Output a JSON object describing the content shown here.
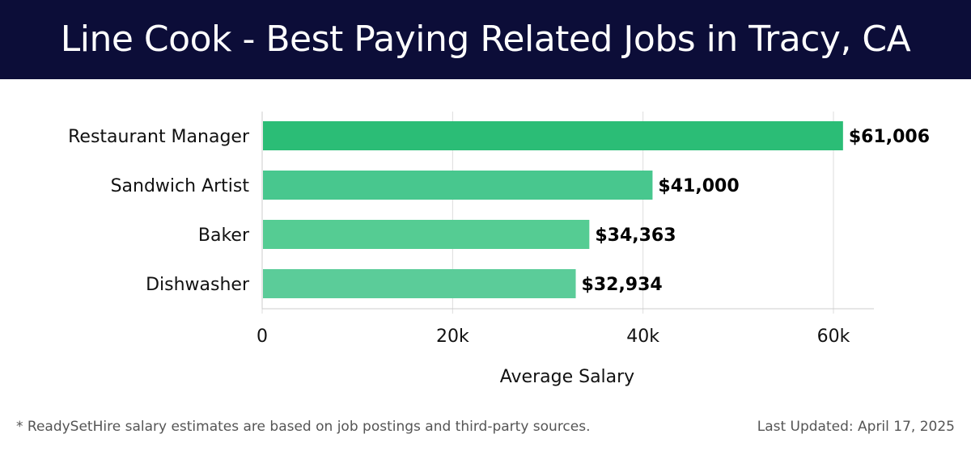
{
  "header": {
    "title": "Line Cook - Best Paying Related Jobs in Tracy, CA"
  },
  "chart_data": {
    "type": "bar",
    "orientation": "horizontal",
    "categories": [
      "Restaurant Manager",
      "Sandwich Artist",
      "Baker",
      "Dishwasher"
    ],
    "values": [
      61006,
      41000,
      34363,
      32934
    ],
    "value_labels": [
      "$61,006",
      "$41,000",
      "$34,363",
      "$32,934"
    ],
    "xlabel": "Average Salary",
    "ylabel": "",
    "xlim": [
      0,
      64000
    ],
    "x_ticks": [
      0,
      20000,
      40000,
      60000
    ],
    "x_tick_labels": [
      "0",
      "20k",
      "40k",
      "60k"
    ],
    "grid": "vertical",
    "bar_colors": [
      "#2bbd76",
      "#48c78e",
      "#55cc93",
      "#5bcc99"
    ]
  },
  "footer": {
    "note": "* ReadySetHire salary estimates are based on job postings and third-party sources.",
    "updated": "Last Updated: April 17, 2025"
  },
  "colors": {
    "header_bg": "#0c0d38",
    "grid": "#dddddd",
    "axis": "#cccccc",
    "label_text": "#111111"
  }
}
